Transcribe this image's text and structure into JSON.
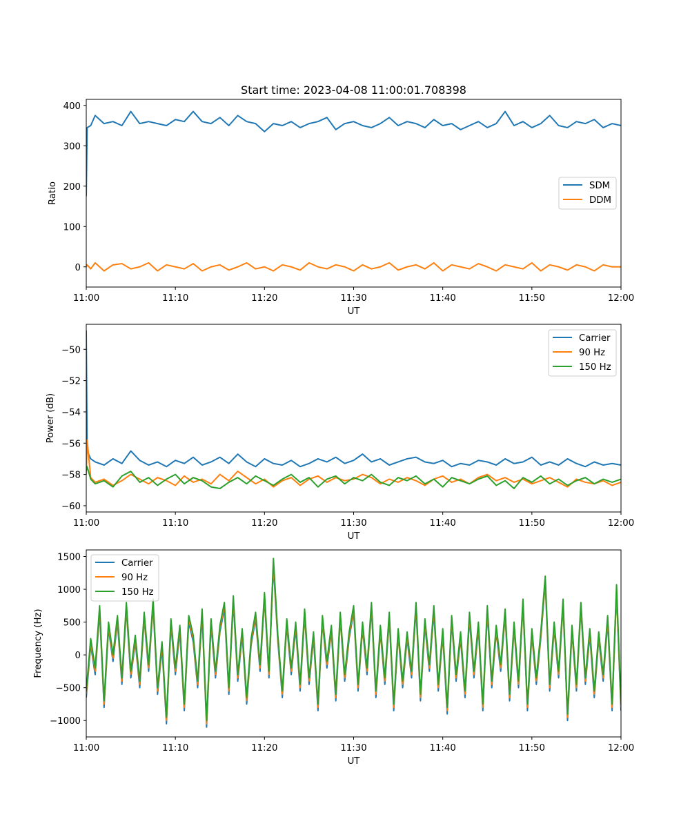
{
  "figure": {
    "title": "Start time: 2023-04-08 11:00:01.708398"
  },
  "chart_data": [
    {
      "type": "line",
      "title": "Start time: 2023-04-08 11:00:01.708398",
      "xlabel": "UT",
      "ylabel": "Ratio",
      "xlim": [
        "11:00",
        "12:00"
      ],
      "x_ticks": [
        "11:00",
        "11:10",
        "11:20",
        "11:30",
        "11:40",
        "11:50",
        "12:00"
      ],
      "ylim": [
        -50,
        415
      ],
      "y_ticks": [
        0,
        100,
        200,
        300,
        400
      ],
      "legend_position": "center-right",
      "grid": false,
      "x_minutes": [
        0,
        0.1,
        0.5,
        1,
        2,
        3,
        4,
        5,
        6,
        7,
        8,
        9,
        10,
        11,
        12,
        13,
        14,
        15,
        16,
        17,
        18,
        19,
        20,
        21,
        22,
        23,
        24,
        25,
        26,
        27,
        28,
        29,
        30,
        31,
        32,
        33,
        34,
        35,
        36,
        37,
        38,
        39,
        40,
        41,
        42,
        43,
        44,
        45,
        46,
        47,
        48,
        49,
        50,
        51,
        52,
        53,
        54,
        55,
        56,
        57,
        58,
        59,
        60
      ],
      "series": [
        {
          "name": "SDM",
          "color": "#1f77b4",
          "values": [
            175,
            345,
            350,
            375,
            355,
            360,
            350,
            385,
            355,
            360,
            355,
            350,
            365,
            360,
            385,
            360,
            355,
            370,
            350,
            375,
            360,
            355,
            335,
            355,
            350,
            360,
            345,
            355,
            360,
            370,
            340,
            355,
            360,
            350,
            345,
            355,
            370,
            350,
            360,
            355,
            345,
            365,
            350,
            355,
            340,
            350,
            360,
            345,
            355,
            385,
            350,
            360,
            345,
            355,
            375,
            350,
            345,
            360,
            355,
            365,
            345,
            355,
            350
          ]
        },
        {
          "name": "DDM",
          "color": "#ff7f0e",
          "values": [
            0,
            5,
            -5,
            10,
            -10,
            5,
            8,
            -5,
            0,
            10,
            -10,
            5,
            0,
            -5,
            8,
            -10,
            0,
            5,
            -8,
            0,
            10,
            -5,
            0,
            -10,
            5,
            0,
            -8,
            10,
            0,
            -5,
            5,
            0,
            -10,
            5,
            -5,
            0,
            10,
            -8,
            0,
            5,
            -5,
            10,
            -10,
            5,
            0,
            -5,
            8,
            0,
            -10,
            5,
            0,
            -5,
            10,
            -10,
            5,
            0,
            -8,
            5,
            0,
            -10,
            5,
            0,
            0
          ]
        }
      ]
    },
    {
      "type": "line",
      "title": "",
      "xlabel": "UT",
      "ylabel": "Power (dB)",
      "xlim": [
        "11:00",
        "12:00"
      ],
      "x_ticks": [
        "11:00",
        "11:10",
        "11:20",
        "11:30",
        "11:40",
        "11:50",
        "12:00"
      ],
      "ylim": [
        -60.4,
        -48.4
      ],
      "y_ticks": [
        -60,
        -58,
        -56,
        -54,
        -52,
        -50
      ],
      "legend_position": "top-right",
      "grid": false,
      "x_minutes": [
        0,
        0.1,
        0.5,
        1,
        2,
        3,
        4,
        5,
        6,
        7,
        8,
        9,
        10,
        11,
        12,
        13,
        14,
        15,
        16,
        17,
        18,
        19,
        20,
        21,
        22,
        23,
        24,
        25,
        26,
        27,
        28,
        29,
        30,
        31,
        32,
        33,
        34,
        35,
        36,
        37,
        38,
        39,
        40,
        41,
        42,
        43,
        44,
        45,
        46,
        47,
        48,
        49,
        50,
        51,
        52,
        53,
        54,
        55,
        56,
        57,
        58,
        59,
        60
      ],
      "series": [
        {
          "name": "Carrier",
          "color": "#1f77b4",
          "values": [
            -48.8,
            -56.5,
            -57.0,
            -57.2,
            -57.4,
            -57.0,
            -57.3,
            -56.5,
            -57.1,
            -57.4,
            -57.2,
            -57.5,
            -57.1,
            -57.3,
            -56.9,
            -57.4,
            -57.2,
            -56.9,
            -57.3,
            -56.7,
            -57.2,
            -57.5,
            -57.0,
            -57.3,
            -57.4,
            -57.1,
            -57.5,
            -57.3,
            -57.0,
            -57.2,
            -56.9,
            -57.3,
            -57.1,
            -56.7,
            -57.2,
            -57.0,
            -57.4,
            -57.2,
            -57.0,
            -56.9,
            -57.2,
            -57.3,
            -57.1,
            -57.5,
            -57.3,
            -57.4,
            -57.1,
            -57.2,
            -57.4,
            -57.0,
            -57.3,
            -57.2,
            -56.9,
            -57.4,
            -57.2,
            -57.4,
            -57.0,
            -57.3,
            -57.5,
            -57.2,
            -57.4,
            -57.3,
            -57.4
          ]
        },
        {
          "name": "90 Hz",
          "color": "#ff7f0e",
          "values": [
            -58.0,
            -55.8,
            -58.2,
            -58.5,
            -58.3,
            -58.7,
            -58.4,
            -58.0,
            -58.3,
            -58.6,
            -58.2,
            -58.4,
            -58.7,
            -58.1,
            -58.5,
            -58.3,
            -58.6,
            -58.0,
            -58.4,
            -57.8,
            -58.2,
            -58.6,
            -58.3,
            -58.8,
            -58.4,
            -58.2,
            -58.7,
            -58.3,
            -58.1,
            -58.5,
            -58.2,
            -58.4,
            -58.3,
            -58.0,
            -58.2,
            -58.6,
            -58.3,
            -58.5,
            -58.2,
            -58.4,
            -58.7,
            -58.3,
            -58.1,
            -58.5,
            -58.3,
            -58.6,
            -58.2,
            -58.0,
            -58.4,
            -58.2,
            -58.5,
            -58.3,
            -58.6,
            -58.4,
            -58.2,
            -58.5,
            -58.8,
            -58.3,
            -58.5,
            -58.6,
            -58.4,
            -58.7,
            -58.5
          ]
        },
        {
          "name": "150 Hz",
          "color": "#2ca02c",
          "values": [
            -57.8,
            -57.5,
            -58.3,
            -58.6,
            -58.4,
            -58.8,
            -58.1,
            -57.8,
            -58.5,
            -58.2,
            -58.7,
            -58.3,
            -58.0,
            -58.6,
            -58.2,
            -58.4,
            -58.8,
            -58.9,
            -58.5,
            -58.2,
            -58.6,
            -58.1,
            -58.4,
            -58.7,
            -58.3,
            -58.0,
            -58.5,
            -58.2,
            -58.8,
            -58.3,
            -58.1,
            -58.6,
            -58.2,
            -58.4,
            -58.0,
            -58.5,
            -58.7,
            -58.2,
            -58.4,
            -58.1,
            -58.6,
            -58.3,
            -58.8,
            -58.2,
            -58.4,
            -58.6,
            -58.3,
            -58.1,
            -58.7,
            -58.4,
            -58.9,
            -58.2,
            -58.5,
            -58.1,
            -58.6,
            -58.3,
            -58.7,
            -58.4,
            -58.2,
            -58.6,
            -58.3,
            -58.5,
            -58.3
          ]
        }
      ]
    },
    {
      "type": "line",
      "title": "",
      "xlabel": "UT",
      "ylabel": "Frequency (Hz)",
      "xlim": [
        "11:00",
        "12:00"
      ],
      "x_ticks": [
        "11:00",
        "11:10",
        "11:20",
        "11:30",
        "11:40",
        "11:50",
        "12:00"
      ],
      "ylim": [
        -1250,
        1600
      ],
      "y_ticks": [
        -1000,
        -500,
        0,
        500,
        1000,
        1500
      ],
      "legend_position": "top-left",
      "grid": false,
      "x_minutes": [
        0,
        0.5,
        1,
        1.5,
        2,
        2.5,
        3,
        3.5,
        4,
        4.5,
        5,
        5.5,
        6,
        6.5,
        7,
        7.5,
        8,
        8.5,
        9,
        9.5,
        10,
        10.5,
        11,
        11.5,
        12,
        12.5,
        13,
        13.5,
        14,
        14.5,
        15,
        15.5,
        16,
        16.5,
        17,
        17.5,
        18,
        18.5,
        19,
        19.5,
        20,
        20.5,
        21,
        21.5,
        22,
        22.5,
        23,
        23.5,
        24,
        24.5,
        25,
        25.5,
        26,
        26.5,
        27,
        27.5,
        28,
        28.5,
        29,
        29.5,
        30,
        30.5,
        31,
        31.5,
        32,
        32.5,
        33,
        33.5,
        34,
        34.5,
        35,
        35.5,
        36,
        36.5,
        37,
        37.5,
        38,
        38.5,
        39,
        39.5,
        40,
        40.5,
        41,
        41.5,
        42,
        42.5,
        43,
        43.5,
        44,
        44.5,
        45,
        45.5,
        46,
        46.5,
        47,
        47.5,
        48,
        48.5,
        49,
        49.5,
        50,
        50.5,
        51,
        51.5,
        52,
        52.5,
        53,
        53.5,
        54,
        54.5,
        55,
        55.5,
        56,
        56.5,
        57,
        57.5,
        58,
        58.5,
        59,
        59.5,
        60
      ],
      "series": [
        {
          "name": "Carrier",
          "color": "#1f77b4",
          "values": [
            -650,
            150,
            -300,
            650,
            -800,
            400,
            -100,
            500,
            -450,
            700,
            -350,
            200,
            -500,
            550,
            -250,
            750,
            -600,
            100,
            -1050,
            450,
            -300,
            350,
            -850,
            500,
            200,
            -500,
            600,
            -1100,
            450,
            -350,
            350,
            700,
            -600,
            800,
            -400,
            300,
            -750,
            150,
            550,
            -250,
            850,
            -350,
            1350,
            200,
            -650,
            450,
            -300,
            400,
            -550,
            600,
            -450,
            250,
            -850,
            500,
            -200,
            350,
            -700,
            550,
            -400,
            250,
            650,
            -550,
            400,
            -300,
            700,
            -650,
            350,
            -450,
            550,
            -850,
            300,
            -500,
            250,
            -350,
            700,
            -700,
            450,
            -250,
            650,
            -550,
            300,
            -900,
            500,
            -400,
            250,
            -650,
            550,
            -350,
            400,
            -850,
            650,
            -500,
            350,
            -250,
            600,
            -700,
            400,
            -500,
            750,
            -850,
            300,
            -450,
            250,
            1100,
            -550,
            400,
            -350,
            750,
            -1000,
            350,
            -550,
            700,
            -450,
            300,
            -650,
            250,
            -400,
            500,
            -850,
            950,
            -850
          ]
        },
        {
          "name": "90 Hz",
          "color": "#ff7f0e",
          "values": [
            -600,
            200,
            -250,
            700,
            -750,
            450,
            -50,
            550,
            -400,
            750,
            -300,
            250,
            -450,
            600,
            -200,
            800,
            -550,
            150,
            -1000,
            500,
            -250,
            400,
            -800,
            550,
            250,
            -450,
            650,
            -1050,
            500,
            -300,
            400,
            750,
            -550,
            850,
            -350,
            350,
            -700,
            200,
            600,
            -200,
            900,
            -300,
            1400,
            250,
            -600,
            500,
            -250,
            450,
            -500,
            650,
            -400,
            300,
            -800,
            550,
            -150,
            400,
            -650,
            600,
            -350,
            300,
            700,
            -500,
            450,
            -250,
            750,
            -600,
            400,
            -400,
            600,
            -800,
            350,
            -450,
            300,
            -300,
            750,
            -650,
            500,
            -200,
            700,
            -500,
            350,
            -850,
            550,
            -350,
            300,
            -600,
            600,
            -300,
            450,
            -800,
            700,
            -450,
            400,
            -200,
            650,
            -650,
            450,
            -450,
            800,
            -800,
            350,
            -400,
            300,
            1150,
            -500,
            450,
            -300,
            800,
            -950,
            400,
            -500,
            750,
            -400,
            350,
            -600,
            300,
            -350,
            550,
            -800,
            1000,
            -800
          ]
        },
        {
          "name": "150 Hz",
          "color": "#2ca02c",
          "values": [
            -550,
            250,
            -200,
            750,
            -700,
            500,
            0,
            600,
            -350,
            800,
            -250,
            300,
            -400,
            650,
            -150,
            850,
            -500,
            200,
            -950,
            550,
            -200,
            450,
            -750,
            600,
            300,
            -400,
            700,
            -1000,
            550,
            -250,
            450,
            800,
            -500,
            900,
            -300,
            400,
            -650,
            250,
            650,
            -150,
            950,
            -250,
            1470,
            300,
            -550,
            550,
            -200,
            500,
            -450,
            700,
            -350,
            350,
            -750,
            600,
            -100,
            450,
            -600,
            650,
            -300,
            350,
            750,
            -450,
            500,
            -200,
            800,
            -550,
            450,
            -350,
            650,
            -750,
            400,
            -400,
            350,
            -250,
            800,
            -600,
            550,
            -150,
            750,
            -450,
            400,
            -800,
            600,
            -300,
            350,
            -550,
            650,
            -250,
            500,
            -750,
            750,
            -400,
            450,
            -150,
            700,
            -600,
            500,
            -400,
            850,
            -750,
            400,
            -350,
            350,
            1200,
            -450,
            500,
            -250,
            850,
            -900,
            450,
            -450,
            800,
            -350,
            400,
            -550,
            350,
            -300,
            600,
            -750,
            1070,
            -750
          ]
        }
      ]
    }
  ]
}
